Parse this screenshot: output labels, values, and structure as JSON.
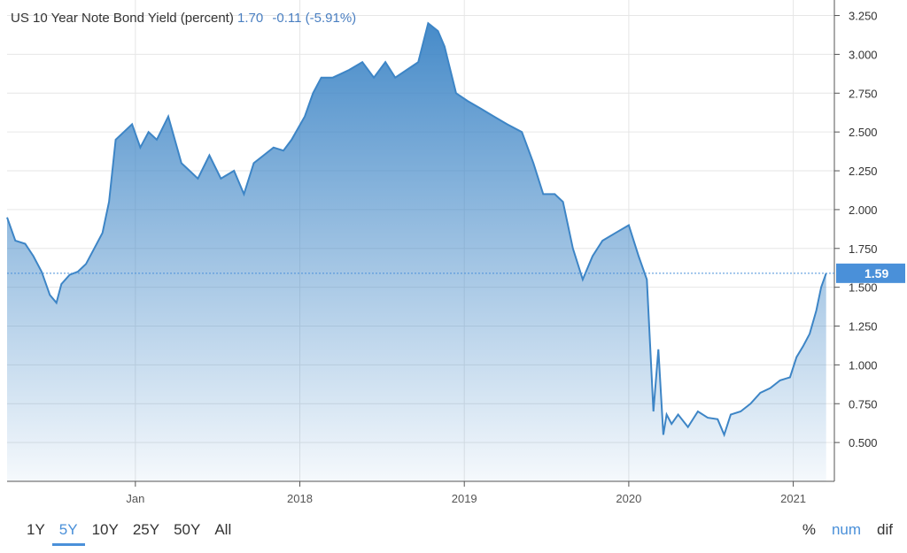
{
  "header": {
    "title": "US 10 Year Note Bond Yield (percent)",
    "value": "1.70",
    "change": "-0.11 (-5.91%)"
  },
  "range_buttons": [
    {
      "label": "1Y",
      "active": false
    },
    {
      "label": "5Y",
      "active": true
    },
    {
      "label": "10Y",
      "active": false
    },
    {
      "label": "25Y",
      "active": false
    },
    {
      "label": "50Y",
      "active": false
    },
    {
      "label": "All",
      "active": false
    }
  ],
  "mode_buttons": [
    {
      "label": "%",
      "active": false
    },
    {
      "label": "num",
      "active": true
    },
    {
      "label": "dif",
      "active": false
    }
  ],
  "colors": {
    "line": "#3d85c6",
    "fill_top": "#3d85c6",
    "fill_bottom": "#ffffff",
    "last_label_bg": "#4a90d9",
    "grid": "#e6e6e6",
    "axis": "#555555"
  },
  "chart_data": {
    "type": "area",
    "title": "US 10 Year Note Bond Yield (percent)",
    "xlabel": "",
    "ylabel": "",
    "x_ticks": [
      "Jan",
      "2018",
      "2019",
      "2020",
      "2021"
    ],
    "x_tick_positions": [
      2017.0,
      2018.0,
      2019.0,
      2020.0,
      2021.0
    ],
    "y_ticks": [
      "0.500",
      "0.750",
      "1.000",
      "1.250",
      "1.500",
      "1.750",
      "2.000",
      "2.250",
      "2.500",
      "2.750",
      "3.000",
      "3.250"
    ],
    "xlim": [
      2016.22,
      2021.25
    ],
    "ylim": [
      0.25,
      3.35
    ],
    "grid": true,
    "last_value_label": "1.59",
    "last_value": 1.59,
    "series": [
      {
        "x": [
          2016.22,
          2016.27,
          2016.33,
          2016.38,
          2016.43,
          2016.48,
          2016.52,
          2016.55,
          2016.6,
          2016.65,
          2016.7,
          2016.75,
          2016.8,
          2016.84,
          2016.88,
          2016.93,
          2016.98,
          2017.03,
          2017.08,
          2017.13,
          2017.2,
          2017.28,
          2017.33,
          2017.38,
          2017.45,
          2017.52,
          2017.6,
          2017.66,
          2017.72,
          2017.78,
          2017.84,
          2017.9,
          2017.95,
          2018.03,
          2018.08,
          2018.13,
          2018.2,
          2018.3,
          2018.38,
          2018.45,
          2018.52,
          2018.58,
          2018.65,
          2018.72,
          2018.78,
          2018.84,
          2018.88,
          2018.95,
          2019.02,
          2019.1,
          2019.18,
          2019.26,
          2019.35,
          2019.42,
          2019.48,
          2019.55,
          2019.6,
          2019.66,
          2019.72,
          2019.78,
          2019.84,
          2019.92,
          2020.0,
          2020.06,
          2020.11,
          2020.15,
          2020.18,
          2020.21,
          2020.23,
          2020.26,
          2020.3,
          2020.36,
          2020.42,
          2020.48,
          2020.54,
          2020.58,
          2020.62,
          2020.68,
          2020.74,
          2020.8,
          2020.86,
          2020.92,
          2020.98,
          2021.02,
          2021.06,
          2021.1,
          2021.14,
          2021.17,
          2021.2
        ],
        "y": [
          1.95,
          1.8,
          1.78,
          1.7,
          1.6,
          1.45,
          1.4,
          1.52,
          1.58,
          1.6,
          1.65,
          1.75,
          1.85,
          2.05,
          2.45,
          2.5,
          2.55,
          2.4,
          2.5,
          2.45,
          2.6,
          2.3,
          2.25,
          2.2,
          2.35,
          2.2,
          2.25,
          2.1,
          2.3,
          2.35,
          2.4,
          2.38,
          2.45,
          2.6,
          2.75,
          2.85,
          2.85,
          2.9,
          2.95,
          2.85,
          2.95,
          2.85,
          2.9,
          2.95,
          3.2,
          3.15,
          3.05,
          2.75,
          2.7,
          2.65,
          2.6,
          2.55,
          2.5,
          2.3,
          2.1,
          2.1,
          2.05,
          1.75,
          1.55,
          1.7,
          1.8,
          1.85,
          1.9,
          1.7,
          1.55,
          0.7,
          1.1,
          0.55,
          0.68,
          0.62,
          0.68,
          0.6,
          0.7,
          0.66,
          0.65,
          0.55,
          0.68,
          0.7,
          0.75,
          0.82,
          0.85,
          0.9,
          0.92,
          1.05,
          1.12,
          1.2,
          1.35,
          1.5,
          1.59
        ]
      }
    ]
  }
}
